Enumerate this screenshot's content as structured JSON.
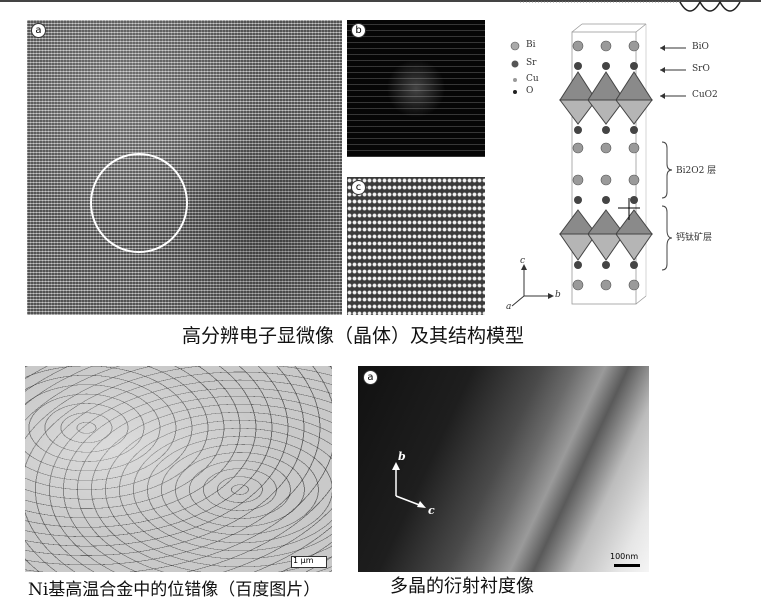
{
  "panels": {
    "a_label": "a",
    "b_label": "b",
    "c_label": "c",
    "d_label": "a"
  },
  "model": {
    "legend": [
      "Bi",
      "Sr",
      "Cu",
      "O"
    ],
    "layer_labels": [
      "BiO",
      "SrO",
      "CuO2"
    ],
    "bracket_labels": [
      "Bi2O2 层",
      "钙钛矿层"
    ],
    "axes": [
      "a",
      "b",
      "c"
    ]
  },
  "captions": {
    "top": "高分辨电子显微像（晶体）及其结构模型",
    "bottom_left": "Ni基高温合金中的位错像（百度图片）",
    "bottom_right": "多晶的衍射衬度像"
  },
  "diffraction": {
    "axis_b": "b",
    "axis_c": "c",
    "scale": "100nm"
  },
  "dislocation": {
    "scale": "1 μm"
  }
}
